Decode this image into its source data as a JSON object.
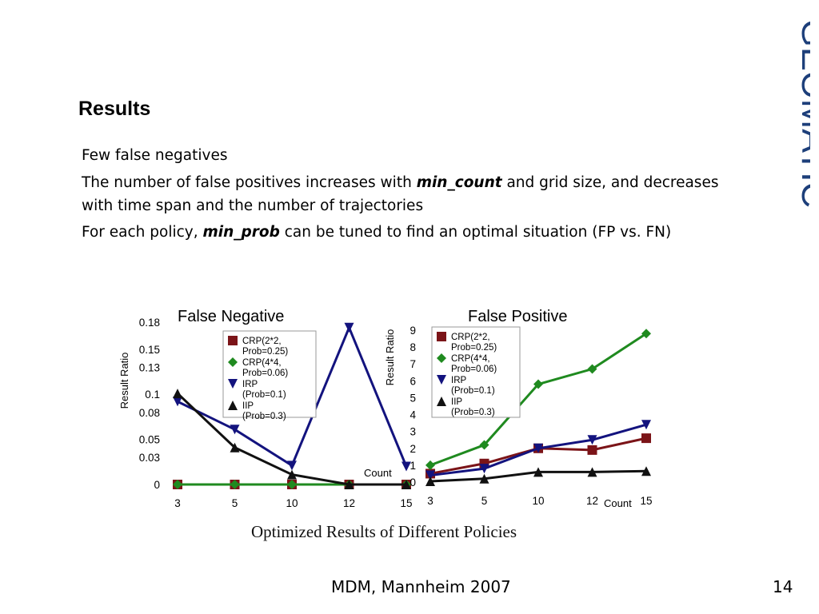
{
  "slide": {
    "title": "Results",
    "bullets": [
      [
        {
          "t": "Few false negatives"
        }
      ],
      [
        {
          "t": "The number of false positives increases with "
        },
        {
          "t": "min_count",
          "b": true
        },
        {
          "t": " and grid size, and decreases with time span and the number of trajectories"
        }
      ],
      [
        {
          "t": "For each policy, "
        },
        {
          "t": "min_prob",
          "b": true
        },
        {
          "t": " can be tuned to find an optimal situation (FP vs. FN)"
        }
      ]
    ],
    "logo_text": "GEOMATIC",
    "footer_center": "MDM, Mannheim 2007",
    "page_number": "14",
    "caption": "Optimized Results of Different Policies"
  },
  "colors": {
    "crp22": "#7b1418",
    "crp44": "#1f8a1f",
    "irp": "#13137e",
    "iip": "#111111",
    "logo": "#1d3f7a"
  },
  "chart_data": [
    {
      "type": "line",
      "title": "False Negative",
      "ylabel": "Result Ratio",
      "xlabel": "Count",
      "categories": [
        "3",
        "5",
        "10",
        "12",
        "15"
      ],
      "ylim": [
        0,
        0.18
      ],
      "yticks": [
        0,
        0.03,
        0.05,
        0.08,
        0.1,
        0.13,
        0.15,
        0.18
      ],
      "ytick_labels": [
        "0",
        "0.03",
        "0.05",
        "0.08",
        "0.1",
        "0.13",
        "0.15",
        "0.18"
      ],
      "legend": "top-right",
      "series": [
        {
          "name": "CRP(2*2, Prob=0.25)",
          "marker": "square",
          "color": "#7b1418",
          "values": [
            0,
            0,
            0,
            0,
            0
          ]
        },
        {
          "name": "CRP(4*4, Prob=0.06)",
          "marker": "diamond",
          "color": "#1f8a1f",
          "values": [
            0,
            0,
            0,
            0,
            0
          ]
        },
        {
          "name": "IRP (Prob=0.1)",
          "marker": "tri-down",
          "color": "#13137e",
          "values": [
            0.092,
            0.061,
            0.021,
            0.174,
            0.02
          ]
        },
        {
          "name": "IIP (Prob=0.3)",
          "marker": "tri-up",
          "color": "#111111",
          "values": [
            0.101,
            0.041,
            0.011,
            0,
            0
          ]
        }
      ]
    },
    {
      "type": "line",
      "title": "False Positive",
      "ylabel": "Result Ratio",
      "xlabel": "Count",
      "categories": [
        "3",
        "5",
        "10",
        "12",
        "15"
      ],
      "ylim": [
        0,
        9
      ],
      "yticks": [
        0,
        1,
        2,
        3,
        4,
        5,
        6,
        7,
        8,
        9
      ],
      "ytick_labels": [
        "0",
        "1",
        "2",
        "3",
        "4",
        "5",
        "6",
        "7",
        "8",
        "9"
      ],
      "legend": "top-left",
      "series": [
        {
          "name": "CRP(2*2, Prob=0.25)",
          "marker": "square",
          "color": "#7b1418",
          "values": [
            0.5,
            1.1,
            2.0,
            1.9,
            2.6
          ]
        },
        {
          "name": "CRP(4*4, Prob=0.06)",
          "marker": "diamond",
          "color": "#1f8a1f",
          "values": [
            1.0,
            2.2,
            5.8,
            6.7,
            8.8
          ]
        },
        {
          "name": "IRP (Prob=0.1)",
          "marker": "tri-down",
          "color": "#13137e",
          "values": [
            0.4,
            0.8,
            2.0,
            2.5,
            3.4
          ]
        },
        {
          "name": "IIP (Prob=0.3)",
          "marker": "tri-up",
          "color": "#111111",
          "values": [
            0.05,
            0.2,
            0.6,
            0.6,
            0.65
          ]
        }
      ]
    }
  ]
}
